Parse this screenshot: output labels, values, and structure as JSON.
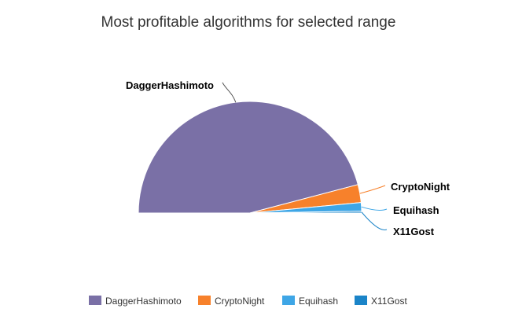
{
  "chart_data": {
    "type": "pie",
    "variant": "semi-circle",
    "title": "Most profitable algorithms for selected range",
    "legend_position": "bottom",
    "series": [
      {
        "name": "DaggerHashimoto",
        "value": 91.8,
        "color": "#7a70a6"
      },
      {
        "name": "CryptoNight",
        "value": 5.2,
        "color": "#f7812b"
      },
      {
        "name": "Equihash",
        "value": 2.5,
        "color": "#3ea6e6"
      },
      {
        "name": "X11Gost",
        "value": 0.5,
        "color": "#1b84c8"
      }
    ]
  }
}
